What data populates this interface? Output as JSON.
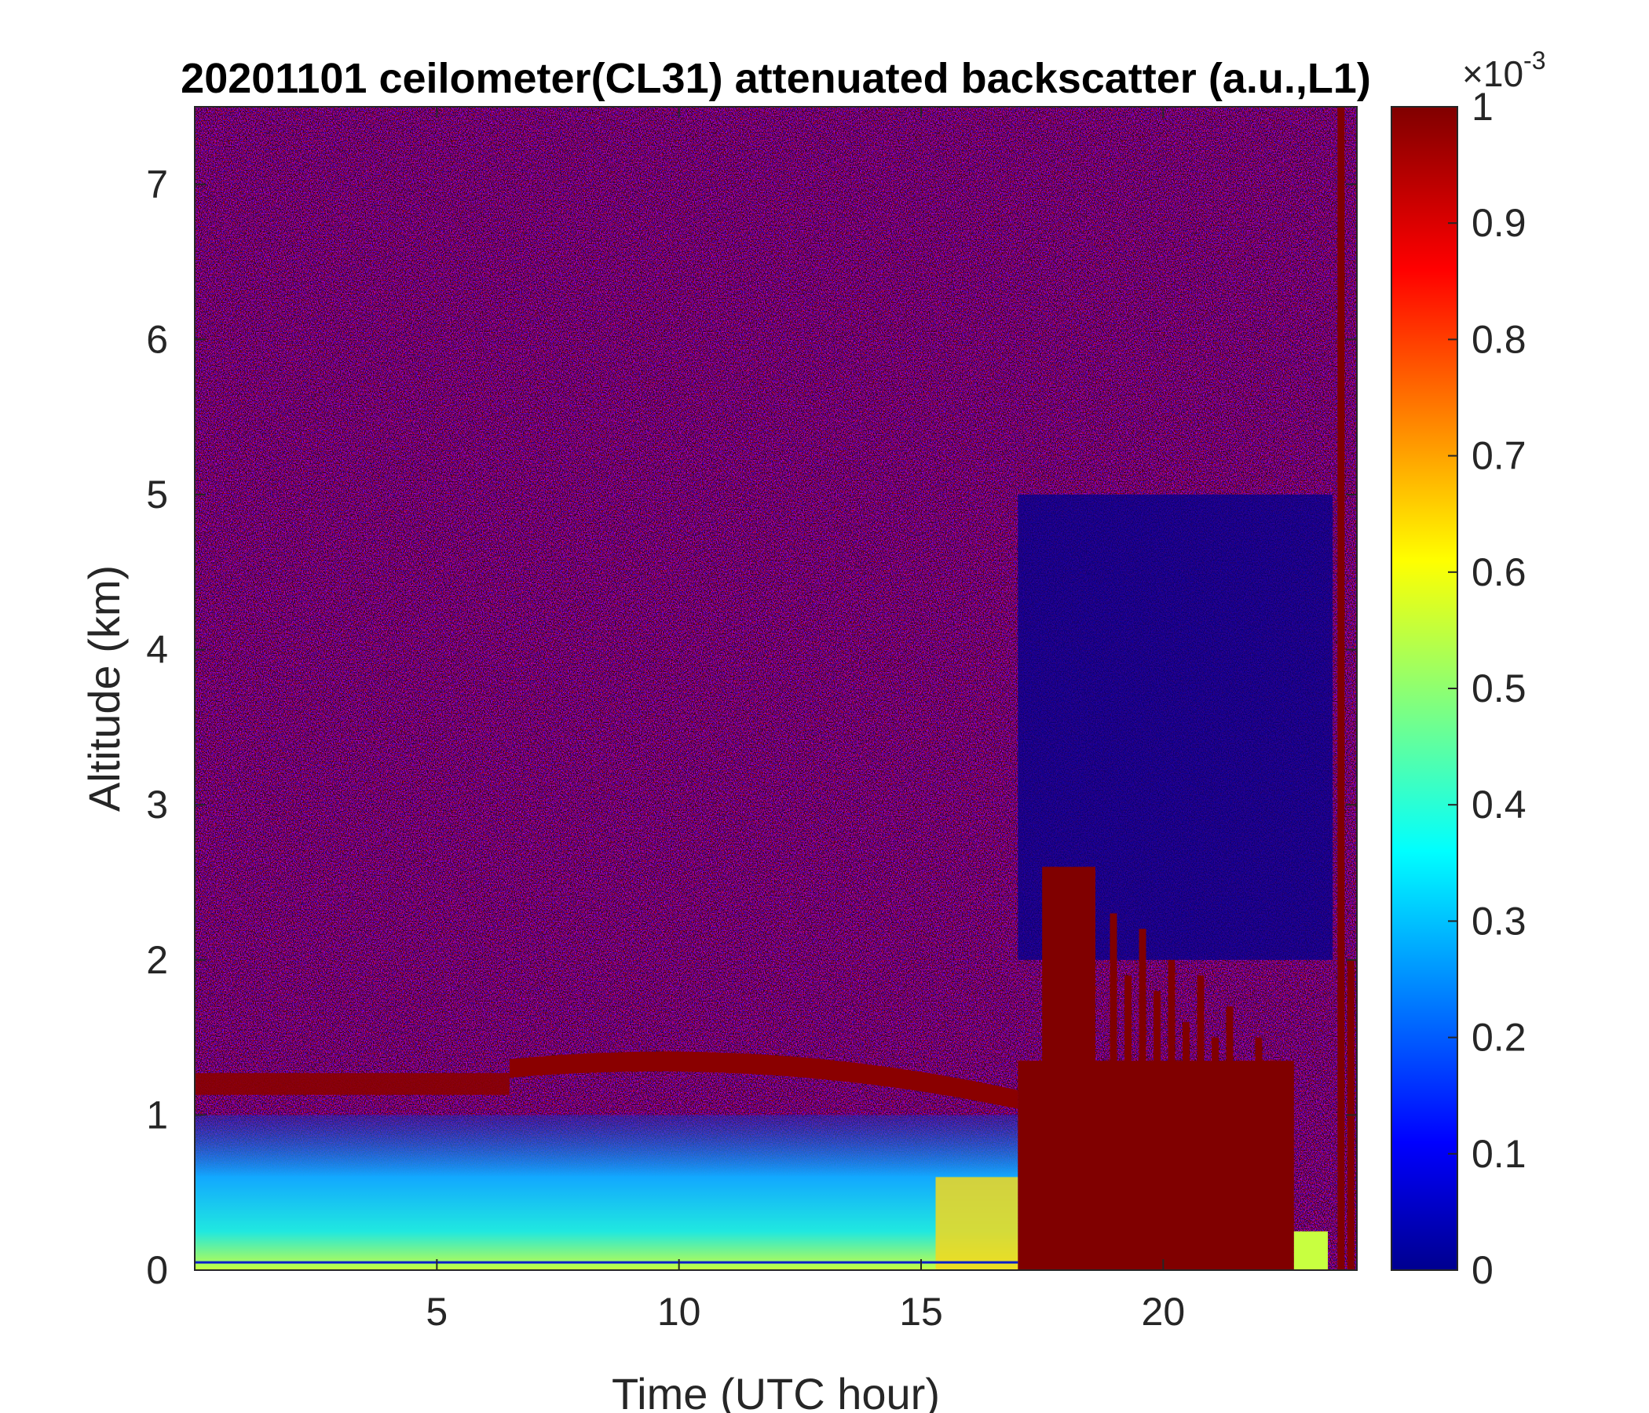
{
  "chart_data": {
    "type": "heatmap",
    "title": "20201101 ceilometer(CL31) attenuated backscatter (a.u.,L1)",
    "xlabel": "Time (UTC hour)",
    "ylabel": "Altitude (km)",
    "xlim": [
      0,
      24
    ],
    "ylim": [
      0,
      7.5
    ],
    "x_ticks": [
      5,
      10,
      15,
      20
    ],
    "y_ticks": [
      0,
      1,
      2,
      3,
      4,
      5,
      6,
      7
    ],
    "colorbar": {
      "colormap": "jet",
      "clim": [
        0,
        0.001
      ],
      "ticks": [
        0,
        0.1,
        0.2,
        0.3,
        0.4,
        0.5,
        0.6,
        0.7,
        0.8,
        0.9,
        1
      ],
      "exponent_label": "×10-3",
      "exponent_base": "×10",
      "exponent_power": "-3"
    },
    "features": [
      {
        "name": "cloud-layer-morning",
        "x_range": [
          0,
          6.5
        ],
        "altitude_km": 1.2,
        "value": 1.0
      },
      {
        "name": "cloud-layer-midday",
        "x_range": [
          6.5,
          17
        ],
        "altitude_km_start": 1.3,
        "altitude_km_peak": 1.4,
        "altitude_km_end": 1.1,
        "value": 1.0
      },
      {
        "name": "boundary-layer-aerosol",
        "x_range": [
          0,
          17
        ],
        "altitude_km": [
          0,
          1.0
        ],
        "value": 0.45
      },
      {
        "name": "precipitation-saturation",
        "x_range": [
          17,
          24
        ],
        "altitude_km": [
          0,
          2.6
        ],
        "value": 1.0
      },
      {
        "name": "clear-low-signal-region",
        "x_range": [
          17,
          23.5
        ],
        "altitude_km": [
          2,
          5
        ],
        "value": 0.0
      }
    ]
  }
}
